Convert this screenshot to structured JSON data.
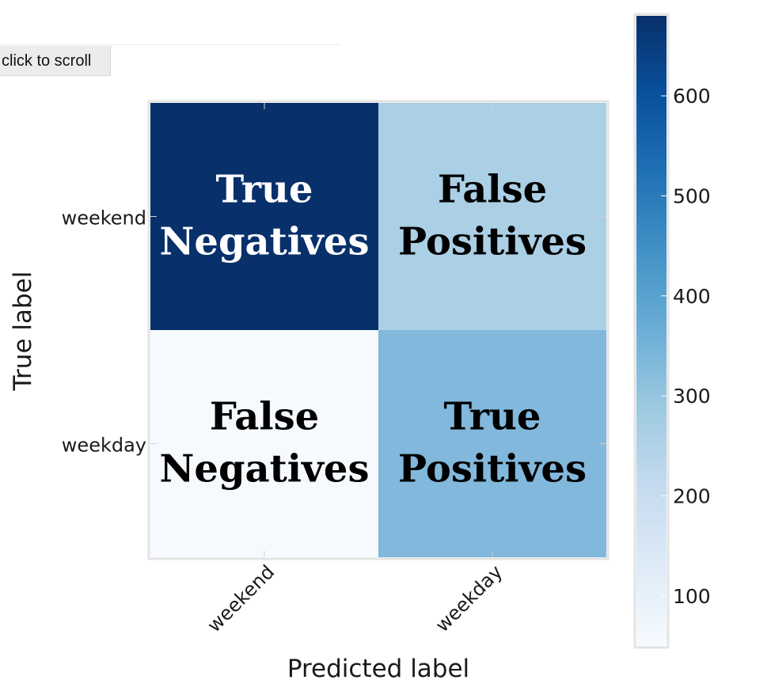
{
  "toolbar": {
    "scroll_label": "click to scroll"
  },
  "chart_data": {
    "type": "heatmap",
    "xlabel": "Predicted label",
    "ylabel": "True label",
    "x_categories": [
      "weekend",
      "weekday"
    ],
    "y_categories": [
      "weekend",
      "weekday"
    ],
    "values": [
      [
        680,
        280
      ],
      [
        55,
        390
      ]
    ],
    "cell_labels": [
      [
        "True Negatives",
        "False Positives"
      ],
      [
        "False Negatives",
        "True Positives"
      ]
    ],
    "colorscale": "Blues",
    "colorbar": {
      "range": [
        50,
        680
      ],
      "ticks": [
        100,
        200,
        300,
        400,
        500,
        600
      ]
    },
    "colors": {
      "cells": [
        [
          "#08306b",
          "#abcfe5"
        ],
        [
          "#f6faff",
          "#81b8db"
        ]
      ],
      "text": [
        [
          "#ffffff",
          "#000000"
        ],
        [
          "#000000",
          "#000000"
        ]
      ],
      "colorbar_stops": [
        "#f7fbff",
        "#deebf7",
        "#c6dbef",
        "#9ecae1",
        "#6baed6",
        "#4292c6",
        "#2171b5",
        "#08519c",
        "#08306b"
      ]
    }
  }
}
